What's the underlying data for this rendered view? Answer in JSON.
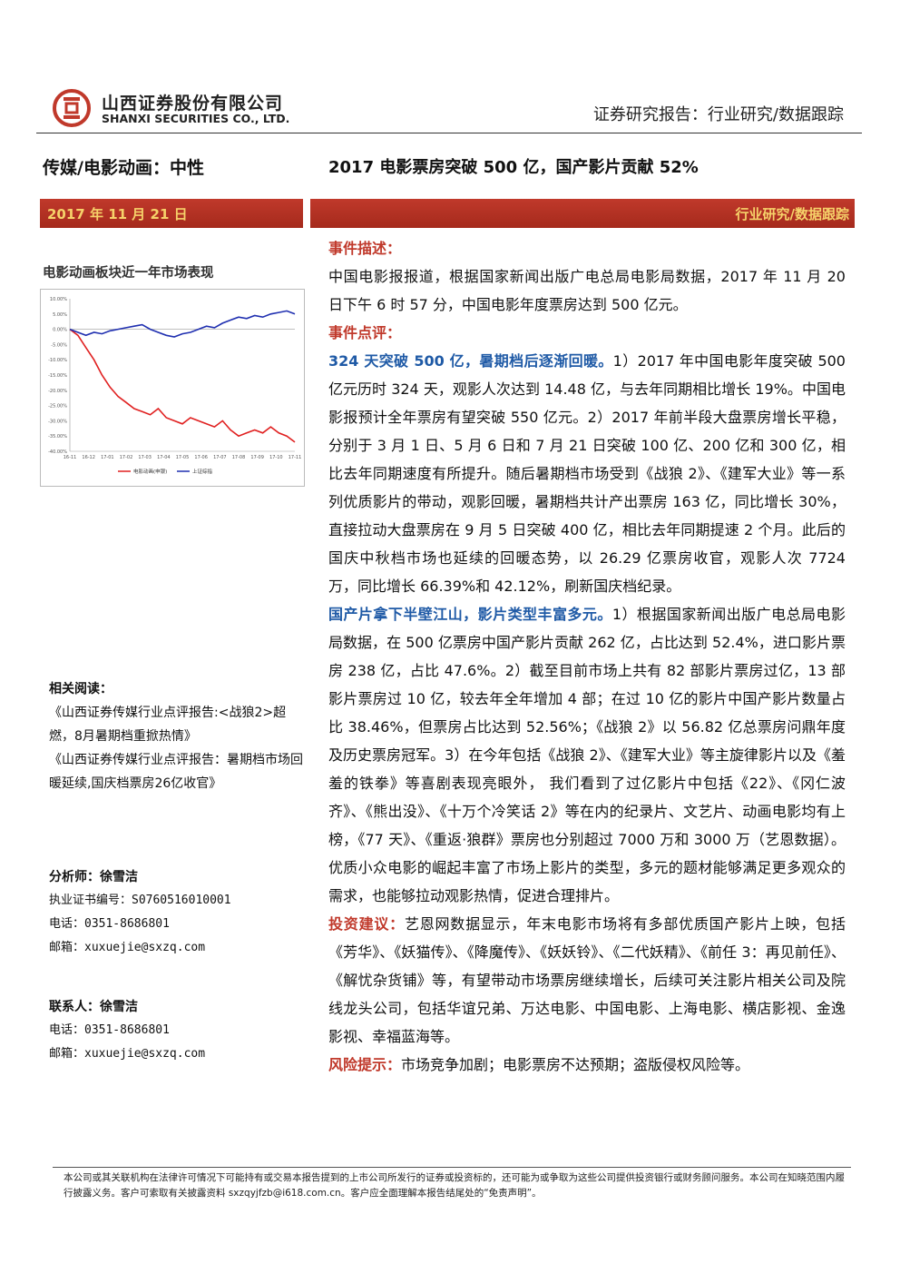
{
  "header": {
    "company_cn": "山西证券股份有限公司",
    "company_en": "SHANXI SECURITIES CO., LTD.",
    "report_type": "证券研究报告：行业研究/数据跟踪"
  },
  "sector_rating": "传媒/电影动画：中性",
  "headline": "2017 电影票房突破 500 亿，国产影片贡献 52%",
  "date": "2017 年 11 月 21 日",
  "bar_label": "行业研究/数据跟踪",
  "chart_title": "电影动画板块近一年市场表现",
  "chart_data": {
    "type": "line",
    "ylim": [
      -0.4,
      0.1
    ],
    "y_ticks": [
      "10.00%",
      "5.00%",
      "0.00%",
      "-5.00%",
      "-10.00%",
      "-15.00%",
      "-20.00%",
      "-25.00%",
      "-30.00%",
      "-35.00%",
      "-40.00%"
    ],
    "x_ticks": [
      "16-11",
      "16-12",
      "17-01",
      "17-02",
      "17-03",
      "17-04",
      "17-05",
      "17-06",
      "17-07",
      "17-08",
      "17-09",
      "17-10",
      "17-11"
    ],
    "series": [
      {
        "name": "电影动画(申银)",
        "color": "#e02020",
        "values": [
          0.0,
          -0.02,
          -0.06,
          -0.1,
          -0.15,
          -0.19,
          -0.22,
          -0.24,
          -0.26,
          -0.27,
          -0.28,
          -0.26,
          -0.29,
          -0.3,
          -0.31,
          -0.29,
          -0.3,
          -0.31,
          -0.32,
          -0.3,
          -0.33,
          -0.35,
          -0.34,
          -0.33,
          -0.34,
          -0.32,
          -0.34,
          -0.35,
          -0.37
        ]
      },
      {
        "name": "上证综指",
        "color": "#1f2fb0",
        "values": [
          0.0,
          -0.01,
          -0.02,
          -0.01,
          -0.015,
          -0.005,
          0.0,
          0.005,
          0.01,
          0.015,
          0.0,
          -0.01,
          -0.02,
          -0.025,
          -0.015,
          -0.01,
          0.0,
          0.01,
          0.005,
          0.02,
          0.03,
          0.04,
          0.035,
          0.045,
          0.04,
          0.05,
          0.055,
          0.06,
          0.05
        ]
      }
    ]
  },
  "related": {
    "heading": "相关阅读：",
    "items": [
      "《山西证券传媒行业点评报告:<战狼2>超燃，8月暑期档重掀热情》",
      "《山西证券传媒行业点评报告：暑期档市场回暖延续,国庆档票房26亿收官》"
    ]
  },
  "analyst": {
    "label": "分析师：徐雪洁",
    "cert": "执业证书编号：S0760516010001",
    "phone": "电话：0351-8686801",
    "email": "邮箱：xuxuejie@sxzq.com"
  },
  "contact": {
    "label": "联系人：徐雪洁",
    "phone": "电话：0351-8686801",
    "email": "邮箱：xuxuejie@sxzq.com"
  },
  "body": {
    "event_title": "事件描述：",
    "event_text": "中国电影报报道，根据国家新闻出版广电总局电影局数据，2017 年 11 月 20 日下午 6 时 57 分，中国电影年度票房达到 500 亿元。",
    "comment_title": "事件点评：",
    "p1_lead": "324 天突破 500 亿，暑期档后逐渐回暖。",
    "p1_text": "1）2017 年中国电影年度突破 500 亿元历时 324 天，观影人次达到 14.48 亿，与去年同期相比增长 19%。中国电影报预计全年票房有望突破 550 亿元。2）2017 年前半段大盘票房增长平稳，分别于 3 月 1 日、5 月 6 日和 7 月 21 日突破 100 亿、200 亿和 300 亿，相比去年同期速度有所提升。随后暑期档市场受到《战狼 2》、《建军大业》等一系列优质影片的带动，观影回暖，暑期档共计产出票房 163 亿，同比增长 30%，直接拉动大盘票房在 9 月 5 日突破 400 亿，相比去年同期提速 2 个月。此后的国庆中秋档市场也延续的回暖态势，以 26.29 亿票房收官，观影人次 7724 万，同比增长 66.39%和 42.12%，刷新国庆档纪录。",
    "p2_lead": "国产片拿下半壁江山，影片类型丰富多元。",
    "p2_text": "1）根据国家新闻出版广电总局电影局数据，在 500 亿票房中国产影片贡献 262 亿，占比达到 52.4%，进口影片票房 238 亿，占比 47.6%。2）截至目前市场上共有 82 部影片票房过亿，13 部影片票房过 10 亿，较去年全年增加 4 部；在过 10 亿的影片中国产影片数量占比 38.46%，但票房占比达到 52.56%；《战狼 2》以 56.82 亿总票房问鼎年度及历史票房冠军。3）在今年包括《战狼 2》、《建军大业》等主旋律影片以及《羞羞的铁拳》等喜剧表现亮眼外， 我们看到了过亿影片中包括《22》、《冈仁波齐》、《熊出没》、《十万个冷笑话 2》等在内的纪录片、文艺片、动画电影均有上榜，《77 天》、《重返·狼群》票房也分别超过 7000 万和 3000 万（艺恩数据）。优质小众电影的崛起丰富了市场上影片的类型，多元的题材能够满足更多观众的需求，也能够拉动观影热情，促进合理排片。",
    "invest_lead": "投资建议：",
    "invest_text": "艺恩网数据显示，年末电影市场将有多部优质国产影片上映，包括《芳华》、《妖猫传》、《降魔传》、《妖妖铃》、《二代妖精》、《前任 3：再见前任》、《解忧杂货铺》等，有望带动市场票房继续增长，后续可关注影片相关公司及院线龙头公司，包括华谊兄弟、万达电影、中国电影、上海电影、横店影视、金逸影视、幸福蓝海等。",
    "risk_lead": "风险提示：",
    "risk_text": "市场竞争加剧；电影票房不达预期；盗版侵权风险等。"
  },
  "footer": "本公司或其关联机构在法律许可情况下可能持有或交易本报告提到的上市公司所发行的证券或投资标的，还可能为或争取为这些公司提供投资银行或财务顾问服务。本公司在知晓范围内履行披露义务。客户可索取有关披露资料 sxzqyjfzb@i618.com.cn。客户应全面理解本报告结尾处的“免责声明”。"
}
